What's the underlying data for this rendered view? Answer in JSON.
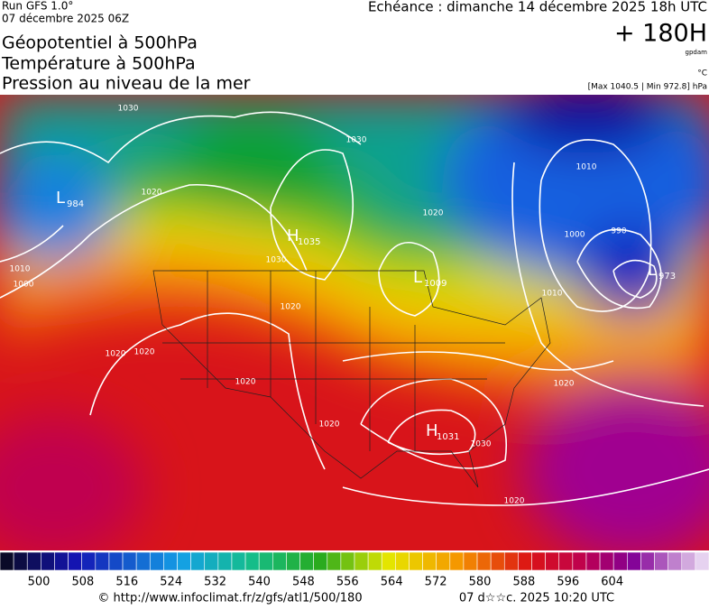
{
  "header": {
    "run": "Run GFS 1.0°",
    "run_date": "07 décembre 2025 06Z",
    "echeance": "Echéance : dimanche 14 décembre 2025 18h UTC",
    "offset": "+ 180H",
    "unit_geo": "gpdam",
    "unit_temp": "°C",
    "range": "[Max 1040.5 | Min 972.8] hPa",
    "titles": [
      "Géopotentiel à 500hPa",
      "Température à 500hPa",
      "Pression au niveau de la mer"
    ]
  },
  "map": {
    "centers": [
      {
        "letter": "L",
        "value": "984"
      },
      {
        "letter": "H",
        "value": "1035"
      },
      {
        "letter": "L",
        "value": "1009"
      },
      {
        "letter": "L",
        "value": "973"
      },
      {
        "letter": "H",
        "value": "1031"
      }
    ],
    "isobar_labels": [
      "1030",
      "1030",
      "1020",
      "1010",
      "1000",
      "1020",
      "1020",
      "1020",
      "1030",
      "1020",
      "1010",
      "1000",
      "990",
      "1010",
      "1020",
      "1020",
      "1020",
      "1030",
      "1020"
    ]
  },
  "colorbar": {
    "ticks": [
      "500",
      "508",
      "516",
      "524",
      "532",
      "540",
      "548",
      "556",
      "564",
      "572",
      "580",
      "588",
      "596",
      "604"
    ]
  },
  "footer": {
    "source": "© http://www.infoclimat.fr/z/gfs/atl1/500/180",
    "date": "07 d☆☆c. 2025 10:20 UTC"
  }
}
